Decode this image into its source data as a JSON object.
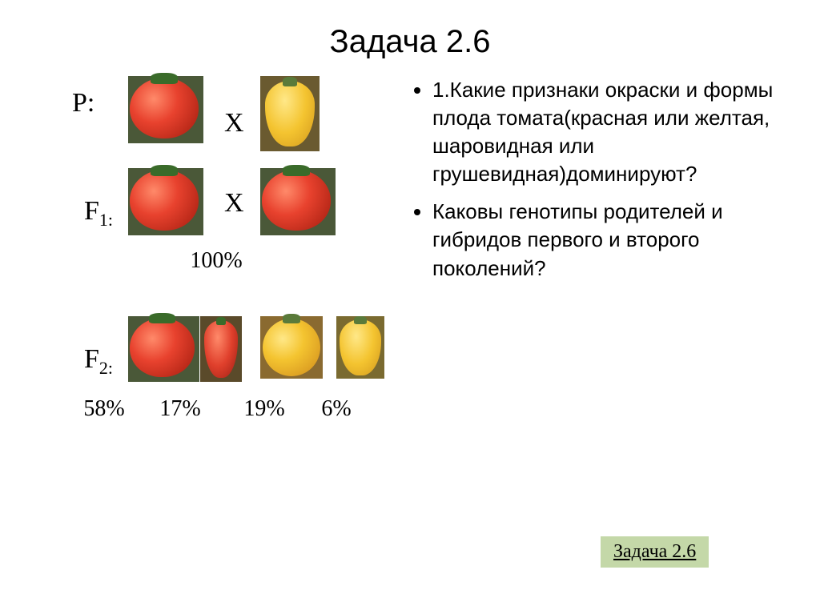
{
  "title": "Задача 2.6",
  "generations": {
    "P": {
      "label": "P:",
      "cross": "X"
    },
    "F1": {
      "label_html": "F<span class='sub'>1:</span>",
      "cross": "X",
      "percent": "100%"
    },
    "F2": {
      "label_html": "F<span class='sub'>2:</span>"
    }
  },
  "f2_results": [
    {
      "percent": "58%",
      "shape": "red-round"
    },
    {
      "percent": "17%",
      "shape": "red-pear"
    },
    {
      "percent": "19%",
      "shape": "yellow-round"
    },
    {
      "percent": "6%",
      "shape": "yellow-pear"
    }
  ],
  "questions": [
    "1.Какие признаки окраски и формы плода томата(красная или желтая, шаровидная или грушевидная)доминируют?",
    "Каковы генотипы родителей и гибридов первого и второго поколений?"
  ],
  "link_label": "Задача 2.6",
  "colors": {
    "link_bg": "#c4d8a8",
    "text": "#000000"
  }
}
